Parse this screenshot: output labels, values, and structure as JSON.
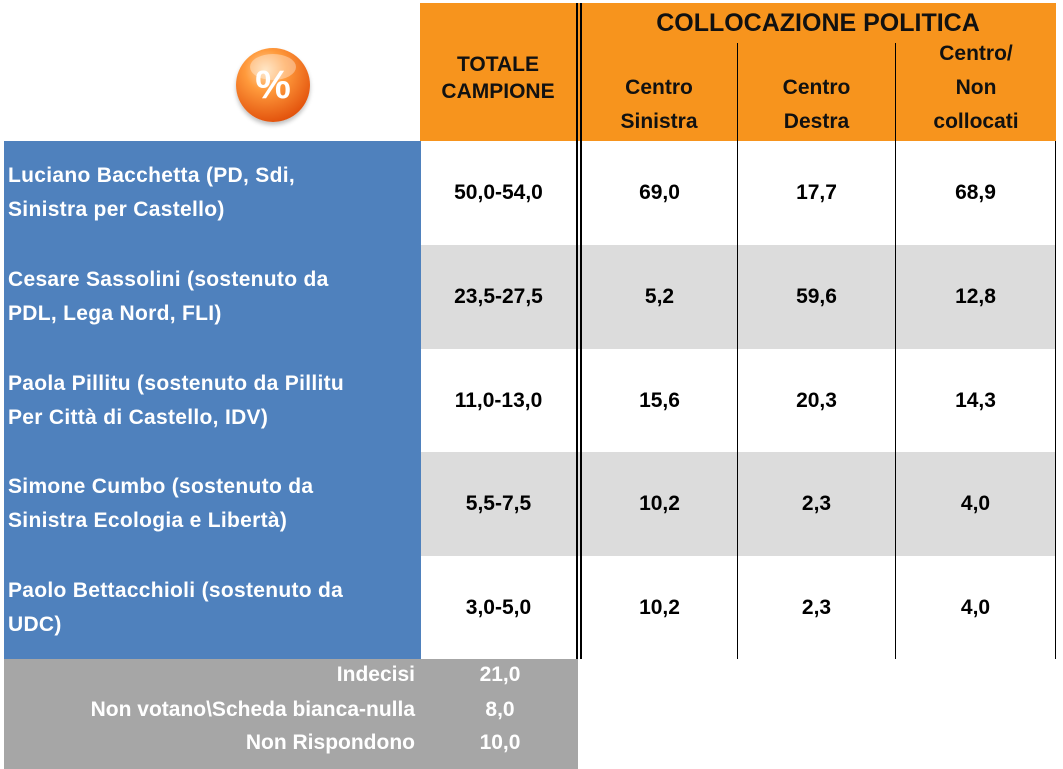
{
  "header": {
    "percent_icon_symbol": "%",
    "totale_line1": "TOTALE",
    "totale_line2": "CAMPIONE",
    "collocazione": "COLLOCAZIONE POLITICA",
    "columns": [
      {
        "line1": "",
        "line2": "Centro",
        "line3": "Sinistra"
      },
      {
        "line1": "",
        "line2": "Centro",
        "line3": "Destra"
      },
      {
        "line1": "Centro/",
        "line2": "Non",
        "line3": "collocati"
      }
    ]
  },
  "rows": [
    {
      "line1": "Luciano Bacchetta (PD, Sdi,",
      "line2": "Sinistra per Castello)",
      "totale": "50,0-54,0",
      "cs": "69,0",
      "cd": "17,7",
      "nc": "68,9"
    },
    {
      "line1": "Cesare Sassolini (sostenuto da",
      "line2": "PDL, Lega Nord, FLI)",
      "totale": "23,5-27,5",
      "cs": "5,2",
      "cd": "59,6",
      "nc": "12,8"
    },
    {
      "line1": "Paola Pillitu (sostenuto da Pillitu",
      "line2": "Per Città di Castello, IDV)",
      "totale": "11,0-13,0",
      "cs": "15,6",
      "cd": "20,3",
      "nc": "14,3"
    },
    {
      "line1": "Simone Cumbo (sostenuto da",
      "line2": "Sinistra Ecologia e Libertà)",
      "totale": "5,5-7,5",
      "cs": "10,2",
      "cd": "2,3",
      "nc": "4,0"
    },
    {
      "line1": "Paolo Bettacchioli (sostenuto da",
      "line2": "UDC)",
      "totale": "3,0-5,0",
      "cs": "10,2",
      "cd": "2,3",
      "nc": "4,0"
    }
  ],
  "footer": [
    {
      "label": "Indecisi",
      "value": "21,0"
    },
    {
      "label": "Non votano\\Scheda bianca-nulla",
      "value": "8,0"
    },
    {
      "label": "Non Rispondono",
      "value": "10,0"
    }
  ],
  "colors": {
    "header_orange": "#f7941d",
    "label_blue": "#4f81bd",
    "alt_row_grey": "#dcdcdc",
    "footer_grey": "#a6a6a6"
  }
}
